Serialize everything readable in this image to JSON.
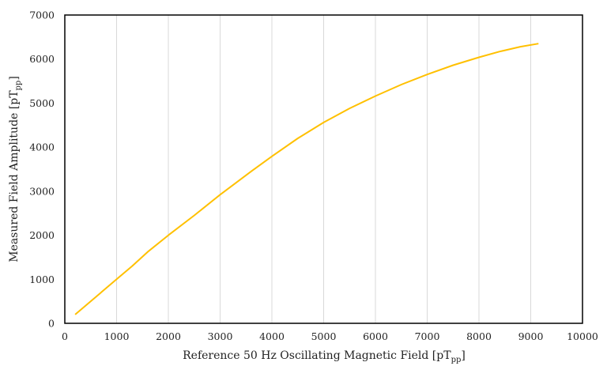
{
  "chart_data": {
    "type": "line",
    "xlabel": {
      "main": "Reference 50 Hz Oscillating Magnetic Field [pT",
      "sub": "pp",
      "end": "]"
    },
    "ylabel": {
      "main": "Measured Field Amplitude [pT",
      "sub": "pp",
      "end": "]"
    },
    "xlim": [
      0,
      10000
    ],
    "ylim": [
      0,
      7000
    ],
    "xticks": [
      0,
      1000,
      2000,
      3000,
      4000,
      5000,
      6000,
      7000,
      8000,
      9000,
      10000
    ],
    "yticks": [
      0,
      1000,
      2000,
      3000,
      4000,
      5000,
      6000,
      7000
    ],
    "grid": "vertical",
    "series": [
      {
        "color": "#FFC000",
        "x": [
          200,
          600,
          1000,
          1300,
          1600,
          2000,
          2500,
          3000,
          3600,
          4000,
          4500,
          5000,
          5500,
          6000,
          6500,
          7000,
          7500,
          8000,
          8400,
          8800,
          9150
        ],
        "y": [
          200,
          600,
          1000,
          1300,
          1620,
          2000,
          2450,
          2920,
          3450,
          3790,
          4200,
          4560,
          4880,
          5160,
          5420,
          5650,
          5860,
          6040,
          6170,
          6280,
          6350
        ]
      }
    ]
  }
}
